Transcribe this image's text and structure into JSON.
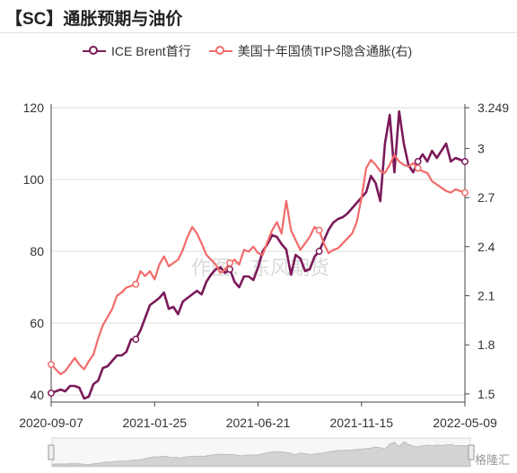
{
  "title": "【SC】通胀预期与油价",
  "watermark": "作图：东风期货",
  "footer_logo": "格隆汇",
  "colors": {
    "brent": "#7b1a5a",
    "tips": "#f26b6b",
    "grid": "#dddddd",
    "axis": "#444444"
  },
  "chart_data": {
    "type": "line",
    "title": "【SC】通胀预期与油价",
    "x_ticks": [
      "2020-09-07",
      "2021-01-25",
      "2021-06-21",
      "2021-11-15",
      "2022-05-09"
    ],
    "x_range": [
      "2020-09-07",
      "2022-05-09"
    ],
    "left_axis": {
      "ylim": [
        38,
        120
      ],
      "ticks": [
        40,
        60,
        80,
        100,
        120
      ]
    },
    "right_axis": {
      "ylim": [
        1.45,
        3.249
      ],
      "ticks": [
        "1.5",
        "1.8",
        "2.1",
        "2.4",
        "2.7",
        "3",
        "3.249"
      ]
    },
    "grid": true,
    "legend": "top",
    "series": [
      {
        "name": "ICE Brent首行",
        "axis": "left",
        "x": [
          0,
          2,
          3,
          4,
          5,
          6,
          7,
          8,
          9,
          10,
          11,
          12,
          13,
          14,
          15,
          16,
          17,
          18,
          19,
          20,
          21,
          22,
          23,
          24,
          25,
          26,
          27,
          28,
          29,
          30,
          31,
          32,
          33,
          34,
          35,
          36,
          37,
          38,
          39,
          40,
          41,
          42,
          43,
          44,
          45,
          46,
          47,
          48,
          49,
          50,
          51,
          52,
          53,
          54,
          55,
          56,
          57,
          58,
          59,
          60,
          61,
          62,
          63,
          64,
          65,
          66,
          67,
          68,
          69,
          70,
          71,
          72,
          73,
          74,
          75,
          76,
          77,
          78,
          79,
          80,
          81,
          82,
          83,
          84,
          85,
          86,
          87,
          88
        ],
        "y": [
          40.5,
          41.5,
          41,
          42.5,
          42.5,
          42,
          39,
          39.5,
          43,
          44,
          47.5,
          48,
          49.5,
          51,
          51,
          52,
          55.5,
          55.5,
          58,
          61.5,
          65,
          66,
          67,
          68.5,
          64,
          64.5,
          62.5,
          66,
          67,
          68,
          69,
          68,
          71.5,
          73.5,
          75,
          75.5,
          74,
          75,
          71.5,
          70,
          73,
          73,
          72,
          75.5,
          80,
          82,
          84.5,
          84,
          82,
          80.5,
          73.5,
          79,
          78,
          74.5,
          75,
          78.5,
          80,
          83,
          86,
          88,
          89,
          89.5,
          90.5,
          92,
          93.5,
          95,
          96.5,
          101,
          99,
          94,
          110,
          118,
          102,
          119,
          110,
          104,
          102,
          105,
          107,
          105,
          108,
          106,
          108,
          110,
          105,
          106,
          105.5,
          105
        ],
        "markers": [
          0,
          18,
          38,
          57,
          78,
          88
        ]
      },
      {
        "name": "美国十年国债TIPS隐含通胀(右)",
        "axis": "right",
        "x": [
          0,
          2,
          3,
          4,
          5,
          6,
          7,
          8,
          9,
          10,
          11,
          12,
          13,
          14,
          15,
          16,
          17,
          18,
          19,
          20,
          21,
          22,
          23,
          24,
          25,
          26,
          27,
          28,
          29,
          30,
          31,
          32,
          33,
          34,
          35,
          36,
          37,
          38,
          39,
          40,
          41,
          42,
          43,
          44,
          45,
          46,
          47,
          48,
          49,
          50,
          51,
          52,
          53,
          54,
          55,
          56,
          57,
          58,
          59,
          60,
          61,
          62,
          63,
          64,
          65,
          66,
          67,
          68,
          69,
          70,
          71,
          72,
          73,
          74,
          75,
          76,
          77,
          78,
          79,
          80,
          81,
          82,
          83,
          84,
          85,
          86,
          87,
          88
        ],
        "y": [
          1.68,
          1.62,
          1.64,
          1.68,
          1.72,
          1.68,
          1.65,
          1.7,
          1.74,
          1.84,
          1.92,
          1.97,
          2.02,
          2.1,
          2.12,
          2.15,
          2.16,
          2.17,
          2.25,
          2.22,
          2.25,
          2.2,
          2.29,
          2.34,
          2.28,
          2.3,
          2.32,
          2.38,
          2.46,
          2.52,
          2.48,
          2.42,
          2.35,
          2.32,
          2.29,
          2.24,
          2.26,
          2.3,
          2.32,
          2.29,
          2.38,
          2.37,
          2.4,
          2.36,
          2.35,
          2.43,
          2.5,
          2.55,
          2.48,
          2.68,
          2.5,
          2.44,
          2.38,
          2.42,
          2.46,
          2.52,
          2.5,
          2.42,
          2.36,
          2.38,
          2.39,
          2.42,
          2.45,
          2.48,
          2.55,
          2.7,
          2.88,
          2.93,
          2.9,
          2.86,
          2.85,
          2.9,
          2.96,
          2.92,
          2.9,
          2.89,
          2.91,
          2.88,
          2.86,
          2.85,
          2.8,
          2.78,
          2.76,
          2.74,
          2.73,
          2.75,
          2.74,
          2.73
        ],
        "markers": [
          0,
          18,
          38,
          57,
          78,
          88
        ]
      }
    ]
  }
}
